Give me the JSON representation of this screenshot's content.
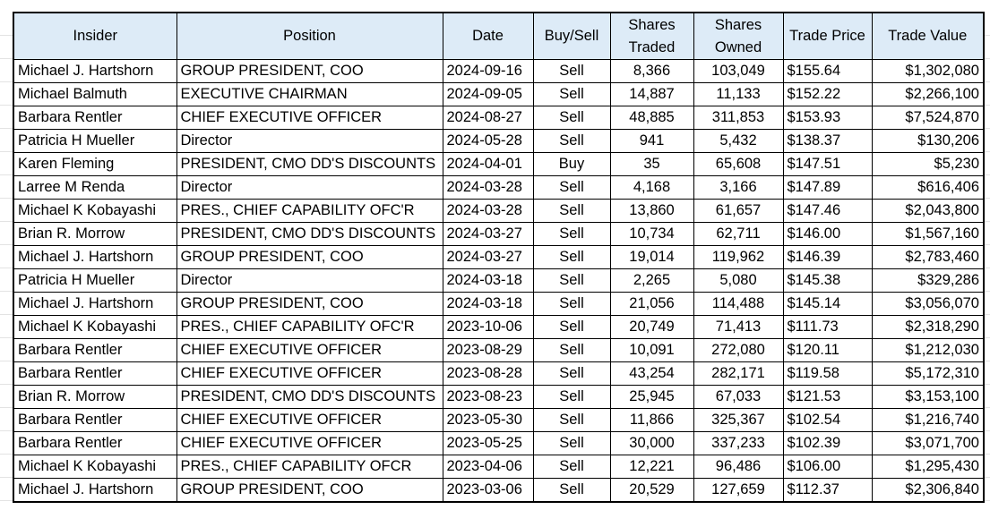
{
  "table": {
    "headers": [
      "Insider",
      "Position",
      "Date",
      "Buy/Sell",
      "Shares Traded",
      "Shares Owned",
      "Trade Price",
      "Trade Value"
    ],
    "rows": [
      [
        "Michael J. Hartshorn",
        "GROUP PRESIDENT, COO",
        "2024-09-16",
        "Sell",
        "8,366",
        "103,049",
        "$155.64",
        "$1,302,080"
      ],
      [
        "Michael Balmuth",
        "EXECUTIVE CHAIRMAN",
        "2024-09-05",
        "Sell",
        "14,887",
        "11,133",
        "$152.22",
        "$2,266,100"
      ],
      [
        "Barbara Rentler",
        "CHIEF EXECUTIVE OFFICER",
        "2024-08-27",
        "Sell",
        "48,885",
        "311,853",
        "$153.93",
        "$7,524,870"
      ],
      [
        "Patricia H Mueller",
        "Director",
        "2024-05-28",
        "Sell",
        "941",
        "5,432",
        "$138.37",
        "$130,206"
      ],
      [
        "Karen Fleming",
        "PRESIDENT, CMO DD'S DISCOUNTS",
        "2024-04-01",
        "Buy",
        "35",
        "65,608",
        "$147.51",
        "$5,230"
      ],
      [
        "Larree M Renda",
        "Director",
        "2024-03-28",
        "Sell",
        "4,168",
        "3,166",
        "$147.89",
        "$616,406"
      ],
      [
        "Michael K Kobayashi",
        "PRES., CHIEF CAPABILITY OFC'R",
        "2024-03-28",
        "Sell",
        "13,860",
        "61,657",
        "$147.46",
        "$2,043,800"
      ],
      [
        "Brian R. Morrow",
        "PRESIDENT, CMO DD'S DISCOUNTS",
        "2024-03-27",
        "Sell",
        "10,734",
        "62,711",
        "$146.00",
        "$1,567,160"
      ],
      [
        "Michael J. Hartshorn",
        "GROUP PRESIDENT, COO",
        "2024-03-27",
        "Sell",
        "19,014",
        "119,962",
        "$146.39",
        "$2,783,460"
      ],
      [
        "Patricia H Mueller",
        "Director",
        "2024-03-18",
        "Sell",
        "2,265",
        "5,080",
        "$145.38",
        "$329,286"
      ],
      [
        "Michael J. Hartshorn",
        "GROUP PRESIDENT, COO",
        "2024-03-18",
        "Sell",
        "21,056",
        "114,488",
        "$145.14",
        "$3,056,070"
      ],
      [
        "Michael K Kobayashi",
        "PRES., CHIEF CAPABILITY OFC'R",
        "2023-10-06",
        "Sell",
        "20,749",
        "71,413",
        "$111.73",
        "$2,318,290"
      ],
      [
        "Barbara Rentler",
        "CHIEF EXECUTIVE OFFICER",
        "2023-08-29",
        "Sell",
        "10,091",
        "272,080",
        "$120.11",
        "$1,212,030"
      ],
      [
        "Barbara Rentler",
        "CHIEF EXECUTIVE OFFICER",
        "2023-08-28",
        "Sell",
        "43,254",
        "282,171",
        "$119.58",
        "$5,172,310"
      ],
      [
        "Brian R. Morrow",
        "PRESIDENT, CMO DD'S DISCOUNTS",
        "2023-08-23",
        "Sell",
        "25,945",
        "67,033",
        "$121.53",
        "$3,153,100"
      ],
      [
        "Barbara Rentler",
        "CHIEF EXECUTIVE OFFICER",
        "2023-05-30",
        "Sell",
        "11,866",
        "325,367",
        "$102.54",
        "$1,216,740"
      ],
      [
        "Barbara Rentler",
        "CHIEF EXECUTIVE OFFICER",
        "2023-05-25",
        "Sell",
        "30,000",
        "337,233",
        "$102.39",
        "$3,071,700"
      ],
      [
        "Michael K Kobayashi",
        "PRES., CHIEF CAPABILITY OFCR",
        "2023-04-06",
        "Sell",
        "12,221",
        "96,486",
        "$106.00",
        "$1,295,430"
      ],
      [
        "Michael J. Hartshorn",
        "GROUP PRESIDENT, COO",
        "2023-03-06",
        "Sell",
        "20,529",
        "127,659",
        "$112.37",
        "$2,306,840"
      ]
    ]
  }
}
